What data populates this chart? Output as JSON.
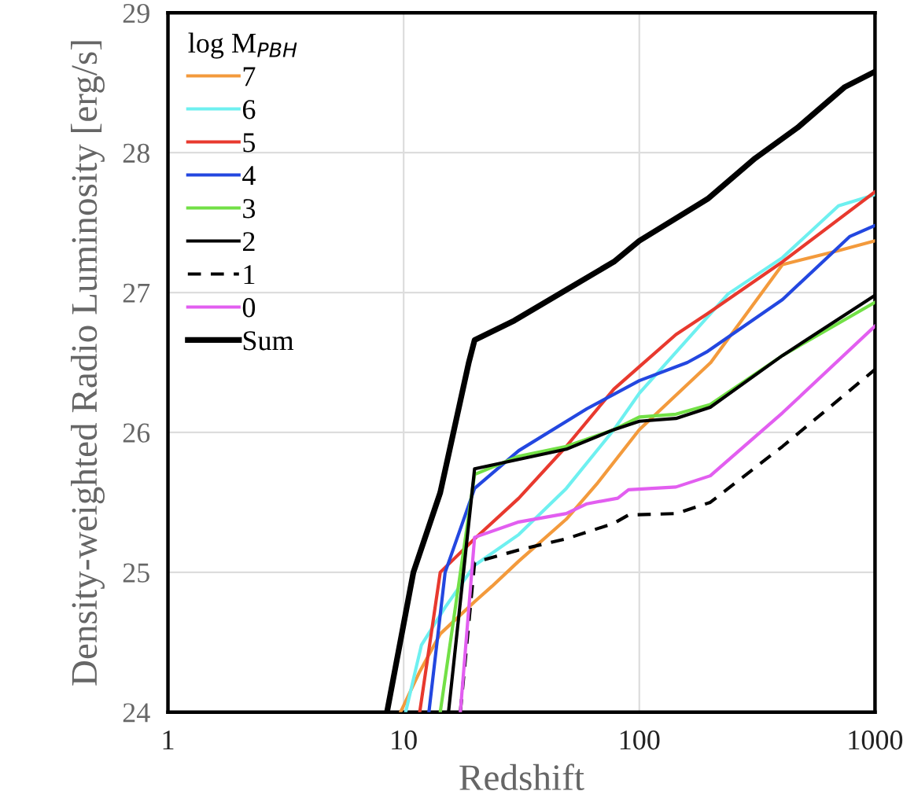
{
  "chart_data": {
    "type": "line",
    "xlabel": "Redshift",
    "ylabel": "Density-weighted Radio Luminosity [erg/s]",
    "legend_title": "log M$_{PBH}$",
    "log": "x",
    "xlim": [
      1,
      1000
    ],
    "xticks": [
      1,
      10,
      100,
      1000
    ],
    "ylim": [
      24,
      29
    ],
    "yticks": [
      24,
      25,
      26,
      27,
      28,
      29
    ],
    "grid": true,
    "legend": "top left",
    "marker": "none",
    "series": [
      {
        "name": "7",
        "color": "#f39a3c",
        "x": [
          9.7,
          11.7,
          14.3,
          20,
          23.7,
          30.8,
          49,
          66.6,
          100,
          201,
          405,
          700,
          1000
        ],
        "values": [
          24,
          24.29,
          24.56,
          24.79,
          24.9,
          25.08,
          25.38,
          25.64,
          26.02,
          26.5,
          27.2,
          27.3,
          27.37
        ]
      },
      {
        "name": "6",
        "color": "#6ef0f0",
        "x": [
          10.2,
          11.9,
          15,
          20,
          30.8,
          49,
          78,
          100,
          238,
          405,
          700,
          1000
        ],
        "values": [
          24,
          24.48,
          24.75,
          25.05,
          25.27,
          25.6,
          26.02,
          26.28,
          26.99,
          27.25,
          27.62,
          27.7
        ]
      },
      {
        "name": "5",
        "color": "#e8392e",
        "x": [
          11.7,
          14.3,
          20,
          30.8,
          49,
          78,
          100,
          143,
          195,
          405,
          1000
        ],
        "values": [
          24,
          25.0,
          25.24,
          25.53,
          25.9,
          26.31,
          26.47,
          26.7,
          26.85,
          27.22,
          27.72
        ]
      },
      {
        "name": "4",
        "color": "#2347e0",
        "x": [
          12.8,
          15,
          20,
          30.8,
          60,
          100,
          160,
          195,
          405,
          780,
          1000
        ],
        "values": [
          24,
          25.0,
          25.6,
          25.87,
          26.17,
          26.37,
          26.5,
          26.58,
          26.95,
          27.4,
          27.48
        ]
      },
      {
        "name": "3",
        "color": "#72e046",
        "x": [
          14.3,
          20,
          30.8,
          49,
          78,
          100,
          143,
          200,
          405,
          1000
        ],
        "values": [
          24,
          25.7,
          25.83,
          25.9,
          26.02,
          26.11,
          26.13,
          26.2,
          26.55,
          26.93
        ]
      },
      {
        "name": "2",
        "color": "#000000",
        "x": [
          15.5,
          20,
          49,
          78,
          100,
          143,
          200,
          405,
          1000
        ],
        "values": [
          24,
          25.74,
          25.88,
          26.02,
          26.08,
          26.1,
          26.18,
          26.55,
          26.98
        ]
      },
      {
        "name": "1",
        "color": "#000000",
        "line_style": "dashed",
        "x": [
          17.4,
          20,
          30.8,
          49,
          78,
          90,
          143,
          200,
          405,
          1000
        ],
        "values": [
          24,
          25.07,
          25.16,
          25.24,
          25.35,
          25.41,
          25.42,
          25.5,
          25.9,
          26.45
        ]
      },
      {
        "name": "0",
        "color": "#e25ef0",
        "x": [
          17.4,
          20,
          30.8,
          49,
          60,
          81,
          90,
          143,
          200,
          405,
          1000
        ],
        "values": [
          24,
          25.25,
          25.36,
          25.42,
          25.49,
          25.53,
          25.59,
          25.61,
          25.69,
          26.14,
          26.76
        ]
      },
      {
        "name": "Sum",
        "color": "#000000",
        "x": [
          8.5,
          11.0,
          14.3,
          18.9,
          20,
          29.5,
          49,
          78,
          100,
          195,
          310,
          470,
          745,
          1000
        ],
        "values": [
          24,
          25.0,
          25.57,
          26.5,
          26.66,
          26.8,
          27.02,
          27.22,
          27.37,
          27.67,
          27.96,
          28.18,
          28.47,
          28.58
        ]
      }
    ]
  }
}
